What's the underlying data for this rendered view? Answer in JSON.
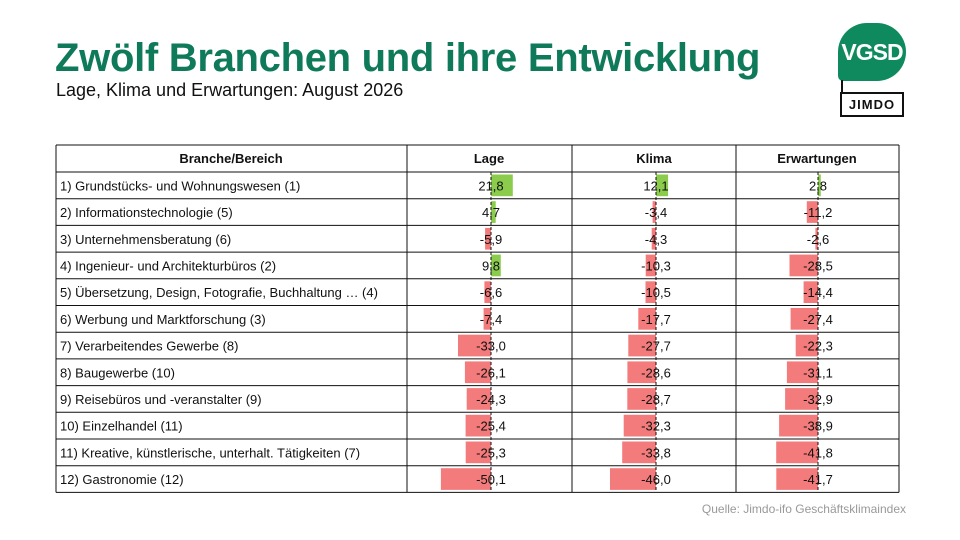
{
  "header": {
    "title": "Zwölf Branchen und ihre Entwicklung",
    "subtitle": "Lage, Klima und Erwartungen: August 2026"
  },
  "logos": {
    "vgsd": "VGSD",
    "jimdo": "JIMDO"
  },
  "footer": {
    "source": "Quelle: Jimdo-ifo Geschäftsklimaindex"
  },
  "colors": {
    "positive": "#8ccc4d",
    "negative": "#f47b7b",
    "title": "#0f7a5a",
    "brand": "#0f8a5f"
  },
  "chart_data": {
    "type": "table",
    "columns": [
      "Branche/Bereich",
      "Lage",
      "Klima",
      "Erwartungen"
    ],
    "rows": [
      {
        "label": "1) Grundstücks- und Wohnungswesen (1)",
        "values": [
          21.8,
          12.1,
          2.8
        ],
        "display": [
          "21,8",
          "12,1",
          "2,8"
        ]
      },
      {
        "label": "2) Informationstechnologie (5)",
        "values": [
          4.7,
          -3.4,
          -11.2
        ],
        "display": [
          "4,7",
          "-3,4",
          "-11,2"
        ]
      },
      {
        "label": "3) Unternehmensberatung (6)",
        "values": [
          -5.9,
          -4.3,
          -2.6
        ],
        "display": [
          "-5,9",
          "-4,3",
          "-2,6"
        ]
      },
      {
        "label": "4) Ingenieur- und Architekturbüros (2)",
        "values": [
          9.8,
          -10.3,
          -28.5
        ],
        "display": [
          "9,8",
          "-10,3",
          "-28,5"
        ]
      },
      {
        "label": "5) Übersetzung, Design, Fotografie, Buchhaltung … (4)",
        "values": [
          -6.6,
          -10.5,
          -14.4
        ],
        "display": [
          "-6,6",
          "-10,5",
          "-14,4"
        ]
      },
      {
        "label": "6) Werbung und Marktforschung (3)",
        "values": [
          -7.4,
          -17.7,
          -27.4
        ],
        "display": [
          "-7,4",
          "-17,7",
          "-27,4"
        ]
      },
      {
        "label": "7) Verarbeitendes Gewerbe (8)",
        "values": [
          -33.0,
          -27.7,
          -22.3
        ],
        "display": [
          "-33,0",
          "-27,7",
          "-22,3"
        ]
      },
      {
        "label": "8) Baugewerbe (10)",
        "values": [
          -26.1,
          -28.6,
          -31.1
        ],
        "display": [
          "-26,1",
          "-28,6",
          "-31,1"
        ]
      },
      {
        "label": "9) Reisebüros und -veranstalter (9)",
        "values": [
          -24.3,
          -28.7,
          -32.9
        ],
        "display": [
          "-24,3",
          "-28,7",
          "-32,9"
        ]
      },
      {
        "label": "10) Einzelhandel (11)",
        "values": [
          -25.4,
          -32.3,
          -38.9
        ],
        "display": [
          "-25,4",
          "-32,3",
          "-38,9"
        ]
      },
      {
        "label": "11) Kreative, künstlerische, unterhalt. Tätigkeiten (7)",
        "values": [
          -25.3,
          -33.8,
          -41.8
        ],
        "display": [
          "-25,3",
          "-33,8",
          "-41,8"
        ]
      },
      {
        "label": "12) Gastronomie (12)",
        "values": [
          -50.1,
          -46.0,
          -41.7
        ],
        "display": [
          "-50,1",
          "-46,0",
          "-41,7"
        ]
      }
    ]
  }
}
